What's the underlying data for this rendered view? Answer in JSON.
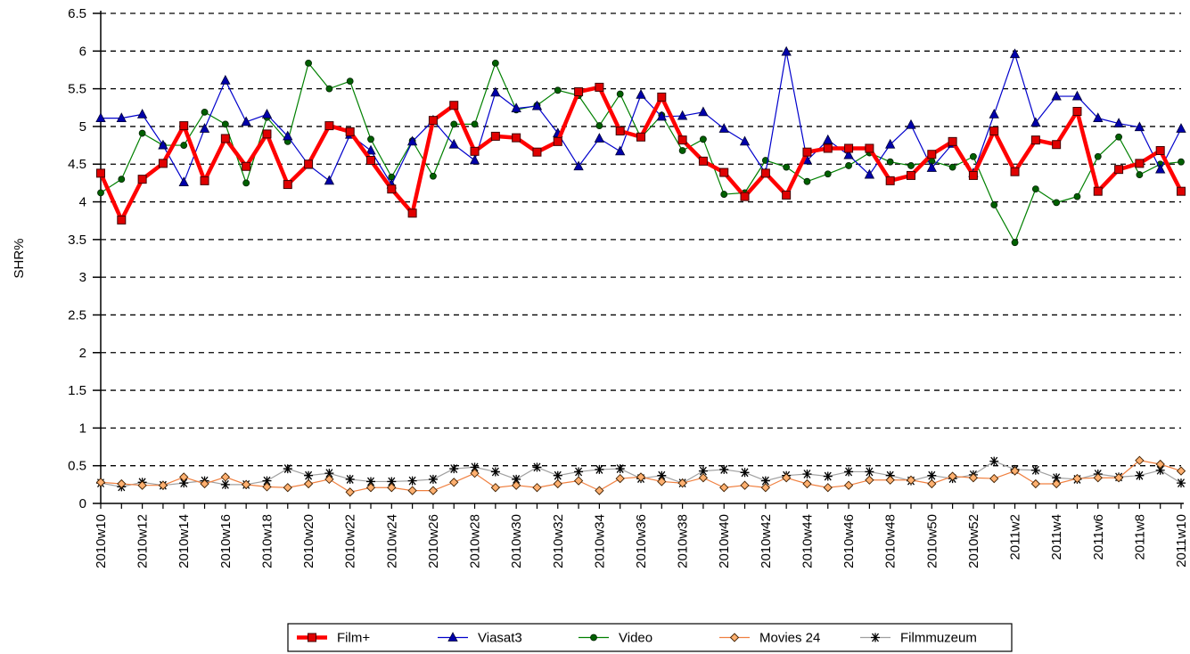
{
  "chart_data": {
    "type": "line",
    "y_label": "SHR%",
    "categories": [
      "2010w10",
      null,
      "2010w12",
      null,
      "2010w14",
      null,
      "2010w16",
      null,
      "2010w18",
      null,
      "2010w20",
      null,
      "2010w22",
      null,
      "2010w24",
      null,
      "2010w26",
      null,
      "2010w28",
      null,
      "2010w30",
      null,
      "2010w32",
      null,
      "2010w34",
      null,
      "2010w36",
      null,
      "2010w38",
      null,
      "2010w40",
      null,
      "2010w42",
      null,
      "2010w44",
      null,
      "2010w46",
      null,
      "2010w48",
      null,
      "2010w50",
      null,
      "2010w52",
      null,
      "2011w2",
      null,
      "2011w4",
      null,
      "2011w6",
      null,
      "2011w8",
      null,
      "2011w10"
    ],
    "ylim": [
      0,
      6.5
    ],
    "yticks": [
      0,
      0.5,
      1,
      1.5,
      2,
      2.5,
      3,
      3.5,
      4,
      4.5,
      5,
      5.5,
      6,
      6.5
    ],
    "grid": true,
    "legend": "bottom",
    "series": [
      {
        "name": "Film+",
        "color": "#ff0000",
        "marker": "square",
        "marker_color": "#e00000",
        "line_width": 4.5,
        "values": [
          4.38,
          3.76,
          4.3,
          4.51,
          5.01,
          4.28,
          4.84,
          4.47,
          4.9,
          4.23,
          4.5,
          5.01,
          4.93,
          4.55,
          4.17,
          3.85,
          5.08,
          5.28,
          4.67,
          4.87,
          4.85,
          4.66,
          4.8,
          5.46,
          5.52,
          4.94,
          4.86,
          5.39,
          4.82,
          4.54,
          4.39,
          4.07,
          4.38,
          4.09,
          4.66,
          4.71,
          4.71,
          4.71,
          4.28,
          4.35,
          4.63,
          4.8,
          4.35,
          4.94,
          4.4,
          4.82,
          4.76,
          5.2,
          4.14,
          4.43,
          4.51,
          4.68,
          4.14
        ]
      },
      {
        "name": "Viasat3",
        "color": "#0000cc",
        "marker": "triangle",
        "marker_color": "#0000aa",
        "line_width": 1.2,
        "values": [
          5.11,
          5.11,
          5.16,
          4.75,
          4.26,
          4.97,
          5.61,
          5.06,
          5.16,
          4.87,
          4.49,
          4.28,
          4.89,
          4.68,
          4.23,
          4.8,
          5.08,
          4.76,
          4.55,
          5.45,
          5.24,
          5.27,
          4.91,
          4.47,
          4.84,
          4.67,
          5.42,
          5.13,
          5.14,
          5.19,
          4.97,
          4.8,
          4.38,
          5.99,
          4.55,
          4.82,
          4.62,
          4.36,
          4.76,
          5.02,
          4.45,
          4.77,
          4.38,
          5.16,
          5.96,
          5.05,
          5.4,
          5.4,
          5.11,
          5.04,
          4.99,
          4.43,
          4.97
        ]
      },
      {
        "name": "Video",
        "color": "#008000",
        "marker": "circle",
        "marker_color": "#006000",
        "line_width": 1.2,
        "values": [
          4.12,
          4.3,
          4.91,
          4.75,
          4.75,
          5.19,
          5.03,
          4.25,
          5.12,
          4.8,
          5.84,
          5.5,
          5.6,
          4.83,
          4.33,
          4.81,
          4.34,
          5.03,
          5.03,
          5.84,
          5.22,
          5.28,
          5.48,
          5.41,
          5.01,
          5.43,
          4.85,
          5.15,
          4.68,
          4.83,
          4.1,
          4.12,
          4.55,
          4.46,
          4.27,
          4.37,
          4.48,
          4.65,
          4.53,
          4.48,
          4.54,
          4.46,
          4.6,
          3.96,
          3.46,
          4.17,
          3.99,
          4.07,
          4.6,
          4.86,
          4.36,
          4.5,
          4.53
        ]
      },
      {
        "name": "Movies 24",
        "color": "#f08040",
        "marker": "diamond",
        "marker_color": "#ffb070",
        "line_width": 1.2,
        "values": [
          0.28,
          0.26,
          0.24,
          0.24,
          0.35,
          0.26,
          0.35,
          0.25,
          0.22,
          0.21,
          0.26,
          0.32,
          0.15,
          0.21,
          0.21,
          0.17,
          0.17,
          0.28,
          0.4,
          0.21,
          0.24,
          0.21,
          0.26,
          0.3,
          0.17,
          0.33,
          0.35,
          0.29,
          0.27,
          0.34,
          0.21,
          0.24,
          0.21,
          0.34,
          0.26,
          0.21,
          0.24,
          0.31,
          0.31,
          0.31,
          0.26,
          0.36,
          0.34,
          0.33,
          0.43,
          0.26,
          0.26,
          0.33,
          0.34,
          0.34,
          0.57,
          0.52,
          0.43
        ]
      },
      {
        "name": "Filmmuzeum",
        "color": "#a0a0a0",
        "marker": "asterisk",
        "marker_color": "#000000",
        "line_width": 1.2,
        "values": [
          0.27,
          0.22,
          0.28,
          0.24,
          0.27,
          0.3,
          0.25,
          0.25,
          0.3,
          0.46,
          0.37,
          0.4,
          0.32,
          0.29,
          0.29,
          0.3,
          0.32,
          0.46,
          0.48,
          0.42,
          0.32,
          0.48,
          0.37,
          0.42,
          0.45,
          0.46,
          0.33,
          0.37,
          0.27,
          0.43,
          0.45,
          0.41,
          0.3,
          0.37,
          0.39,
          0.36,
          0.42,
          0.42,
          0.37,
          0.3,
          0.37,
          0.33,
          0.38,
          0.56,
          0.45,
          0.44,
          0.34,
          0.32,
          0.39,
          0.35,
          0.37,
          0.44,
          0.27
        ]
      }
    ]
  }
}
